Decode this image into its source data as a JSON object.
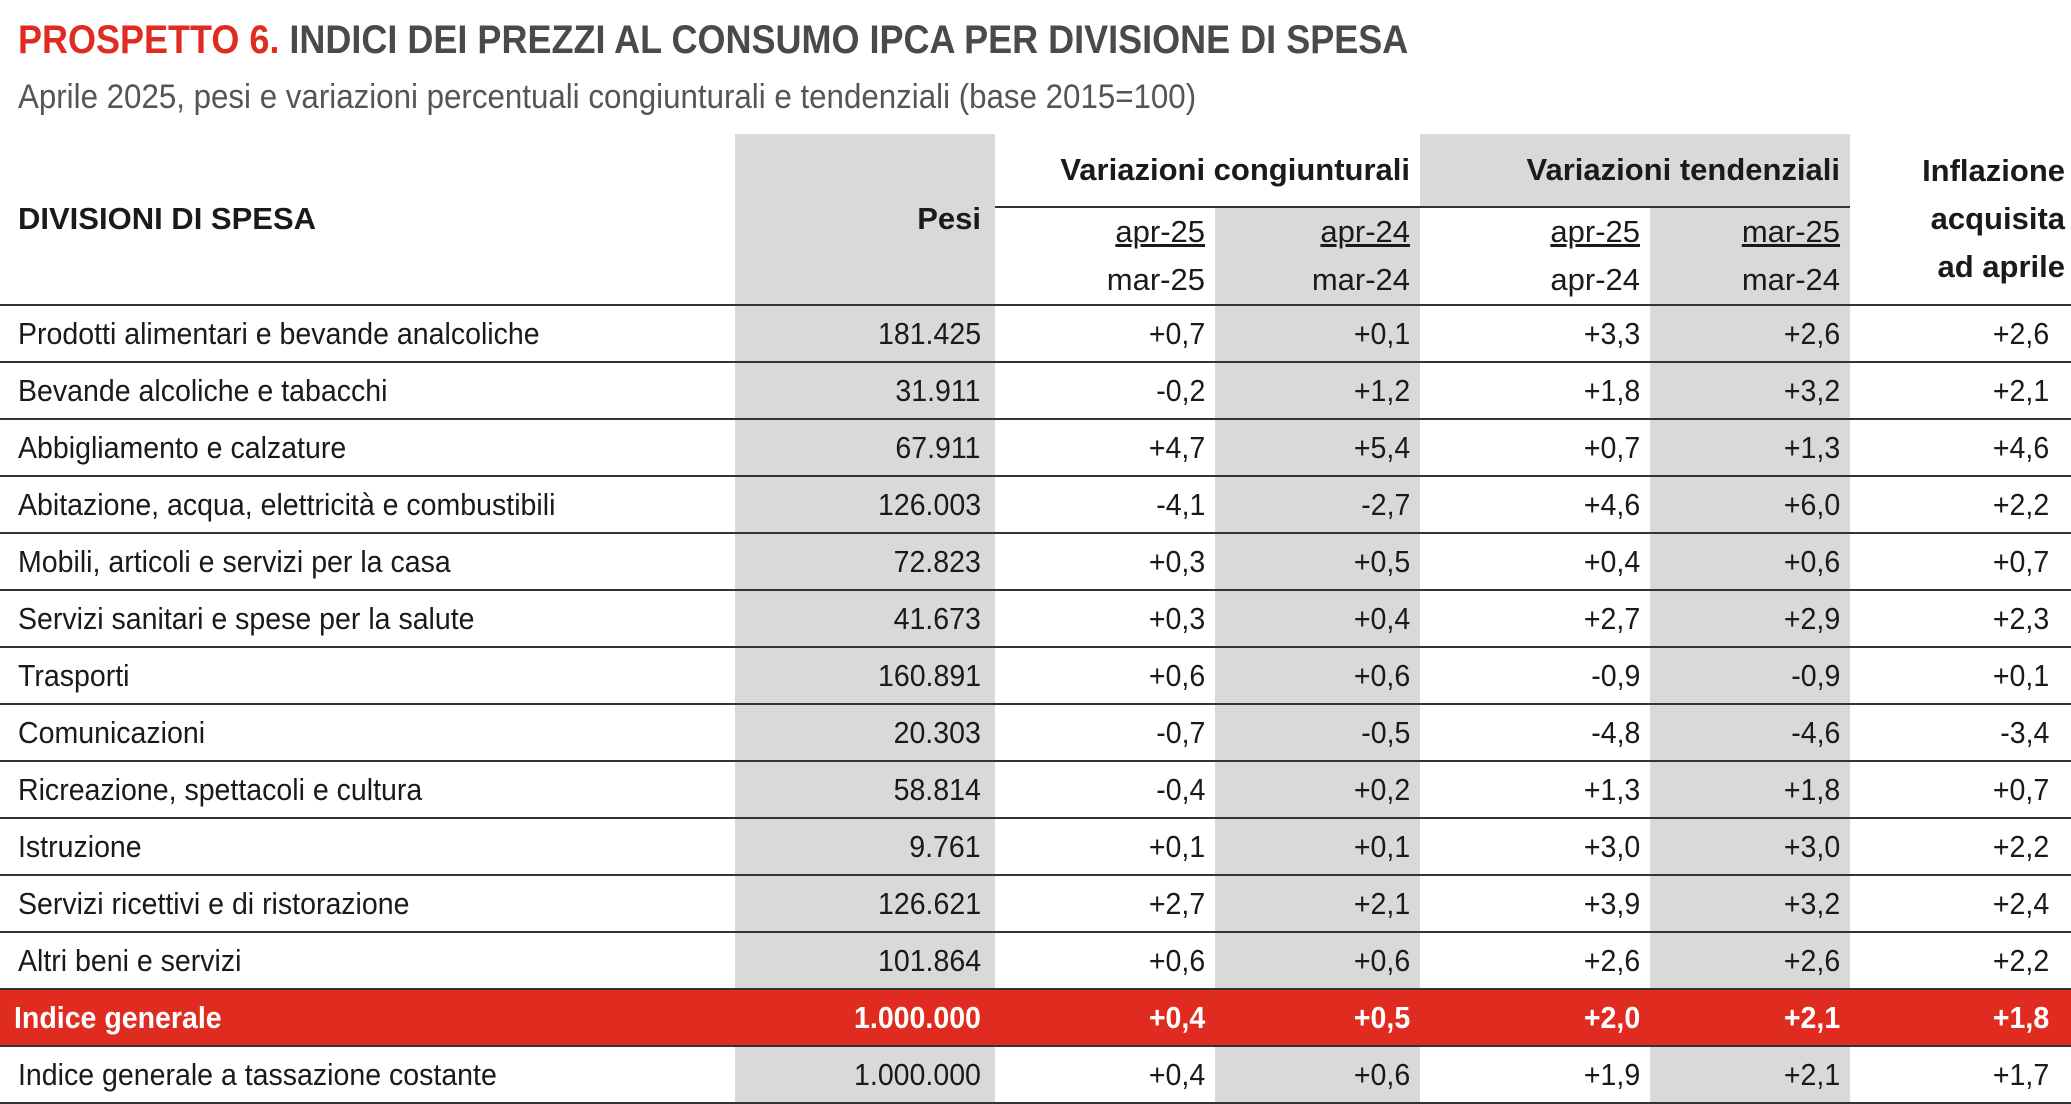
{
  "title": {
    "lead": "PROSPETTO 6.",
    "rest": "INDICI DEI PREZZI AL CONSUMO IPCA PER DIVISIONE DI SPESA"
  },
  "subtitle": "Aprile 2025, pesi e variazioni percentuali congiunturali e tendenziali (base 2015=100)",
  "header": {
    "divisioni": "DIVISIONI DI SPESA",
    "pesi": "Pesi",
    "congiunturali": "Variazioni congiunturali",
    "tendenziali": "Variazioni tendenziali",
    "inflazione": [
      "Inflazione",
      "acquisita",
      "ad aprile"
    ],
    "periods": [
      {
        "top": "apr-25",
        "bottom": "mar-25"
      },
      {
        "top": "apr-24",
        "bottom": "mar-24"
      },
      {
        "top": "apr-25",
        "bottom": "apr-24"
      },
      {
        "top": "mar-25",
        "bottom": "mar-24"
      }
    ]
  },
  "rows": [
    {
      "label": "Prodotti alimentari e bevande analcoliche",
      "pesi": "181.425",
      "v1": "+0,7",
      "v2": "+0,1",
      "v3": "+3,3",
      "v4": "+2,6",
      "inf": "+2,6"
    },
    {
      "label": "Bevande alcoliche e tabacchi",
      "pesi": "31.911",
      "v1": "-0,2",
      "v2": "+1,2",
      "v3": "+1,8",
      "v4": "+3,2",
      "inf": "+2,1"
    },
    {
      "label": "Abbigliamento e calzature",
      "pesi": "67.911",
      "v1": "+4,7",
      "v2": "+5,4",
      "v3": "+0,7",
      "v4": "+1,3",
      "inf": "+4,6"
    },
    {
      "label": "Abitazione, acqua, elettricità e combustibili",
      "pesi": "126.003",
      "v1": "-4,1",
      "v2": "-2,7",
      "v3": "+4,6",
      "v4": "+6,0",
      "inf": "+2,2"
    },
    {
      "label": "Mobili, articoli e servizi per la casa",
      "pesi": "72.823",
      "v1": "+0,3",
      "v2": "+0,5",
      "v3": "+0,4",
      "v4": "+0,6",
      "inf": "+0,7"
    },
    {
      "label": "Servizi sanitari e spese per la salute",
      "pesi": "41.673",
      "v1": "+0,3",
      "v2": "+0,4",
      "v3": "+2,7",
      "v4": "+2,9",
      "inf": "+2,3"
    },
    {
      "label": "Trasporti",
      "pesi": "160.891",
      "v1": "+0,6",
      "v2": "+0,6",
      "v3": "-0,9",
      "v4": "-0,9",
      "inf": "+0,1"
    },
    {
      "label": "Comunicazioni",
      "pesi": "20.303",
      "v1": "-0,7",
      "v2": "-0,5",
      "v3": "-4,8",
      "v4": "-4,6",
      "inf": "-3,4"
    },
    {
      "label": "Ricreazione, spettacoli e cultura",
      "pesi": "58.814",
      "v1": "-0,4",
      "v2": "+0,2",
      "v3": "+1,3",
      "v4": "+1,8",
      "inf": "+0,7"
    },
    {
      "label": "Istruzione",
      "pesi": "9.761",
      "v1": "+0,1",
      "v2": "+0,1",
      "v3": "+3,0",
      "v4": "+3,0",
      "inf": "+2,2"
    },
    {
      "label": "Servizi ricettivi e di ristorazione",
      "pesi": "126.621",
      "v1": "+2,7",
      "v2": "+2,1",
      "v3": "+3,9",
      "v4": "+3,2",
      "inf": "+2,4"
    },
    {
      "label": "Altri beni e servizi",
      "pesi": "101.864",
      "v1": "+0,6",
      "v2": "+0,6",
      "v3": "+2,6",
      "v4": "+2,6",
      "inf": "+2,2"
    },
    {
      "label": "Indice generale",
      "pesi": "1.000.000",
      "v1": "+0,4",
      "v2": "+0,5",
      "v3": "+2,0",
      "v4": "+2,1",
      "inf": "+1,8",
      "highlight": true
    },
    {
      "label": "Indice generale a tassazione costante",
      "pesi": "1.000.000",
      "v1": "+0,4",
      "v2": "+0,6",
      "v3": "+1,9",
      "v4": "+2,1",
      "inf": "+1,7"
    }
  ],
  "colors": {
    "accent": "#e02b20",
    "shade": "#d9d9d9",
    "title_gray": "#4a4a4a"
  }
}
